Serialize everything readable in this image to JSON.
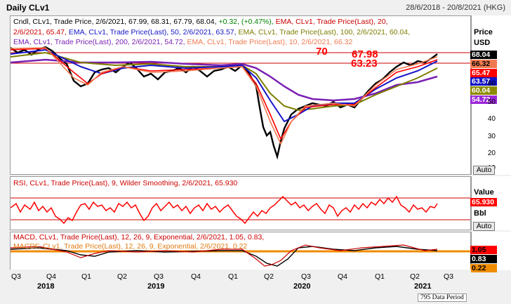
{
  "window": {
    "title": "Daily CLv1",
    "date_range": "28/6/2018 - 20/8/2021 (HKG)"
  },
  "price_panel": {
    "legend_lines": [
      [
        {
          "text": "Cndl, CLv1, Trade Price, 2/6/2021, 67.99, 68.31, 67.79, 68.04, ",
          "color": "#000000"
        },
        {
          "text": "+0.32, (+0.47%), ",
          "color": "#008000"
        },
        {
          "text": "EMA, CLv1, Trade Price(Last), 20,",
          "color": "#cc0000"
        }
      ],
      [
        {
          "text": "2/6/2021, 65.47, ",
          "color": "#cc0000"
        },
        {
          "text": "EMA, CLv1, Trade Price(Last), 50, 2/6/2021, 63.57, ",
          "color": "#1414c8"
        },
        {
          "text": "EMA, CLv1, Trade Price(Last), 100, 2/6/2021, 60.04,",
          "color": "#7d7d00"
        }
      ],
      [
        {
          "text": "EMA, CLv1, Trade Price(Last), 200, 2/6/2021, 54.72, ",
          "color": "#7a20b4"
        },
        {
          "text": "EMA, CLv1, Trade Price(Last), 10, 2/6/2021, 66.32",
          "color": "#f07a50"
        }
      ]
    ],
    "axis_title": "Price",
    "axis_unit": "USD",
    "ticks": [
      "60",
      "50",
      "40",
      "30",
      "20",
      "10"
    ],
    "badges": [
      {
        "value": "68.04",
        "bg": "#000000",
        "fg": "#ffffff"
      },
      {
        "value": "66.32",
        "bg": "#f07a50",
        "fg": "#000000"
      },
      {
        "value": "65.47",
        "bg": "#ff0000",
        "fg": "#ffffff"
      },
      {
        "value": "63.57",
        "bg": "#1414c8",
        "fg": "#ffffff"
      },
      {
        "value": "60.04",
        "bg": "#8c8c00",
        "fg": "#ffffff"
      },
      {
        "value": "54.72",
        "bg": "#9a28d8",
        "fg": "#ffffff"
      }
    ],
    "annotations": [
      "70",
      "67.98",
      "63.23"
    ],
    "auto_label": "Auto"
  },
  "rsi_panel": {
    "legend": "RSI, CLv1, Trade Price(Last), 9, Wilder Smoothing, 2/6/2021, 65.930",
    "legend_color": "#cc0000",
    "axis_title": "Value",
    "badge": {
      "value": "65.930",
      "bg": "#ff0000",
      "fg": "#ffffff"
    },
    "unit": "Bbl",
    "auto_label": "Auto"
  },
  "macd_panel": {
    "legend_lines": [
      {
        "text": "MACD, CLv1, Trade Price(Last), 12, 26, 9, Exponential, 2/6/2021, 1.05, 0.83,",
        "color": "#cc0000"
      },
      {
        "text": "MACDF, CLv1, Trade Price(Last), 12, 26, 9, Exponential, 2/6/2021, 0.22",
        "color": "#e07a10"
      }
    ],
    "badges": [
      {
        "value": "1.05",
        "bg": "#ff0000",
        "fg": "#000000"
      },
      {
        "value": "0.83",
        "bg": "#000000",
        "fg": "#ffffff"
      },
      {
        "value": "0.22",
        "bg": "#f08c00",
        "fg": "#000000"
      }
    ]
  },
  "x_axis": {
    "quarters": [
      "Q3",
      "Q4",
      "Q1",
      "Q2",
      "Q3",
      "Q4",
      "Q1",
      "Q2",
      "Q3",
      "Q4",
      "Q1",
      "Q2",
      "Q3"
    ],
    "years": [
      "2018",
      "2019",
      "2020",
      "2021"
    ]
  },
  "status": "795 Data Period"
}
